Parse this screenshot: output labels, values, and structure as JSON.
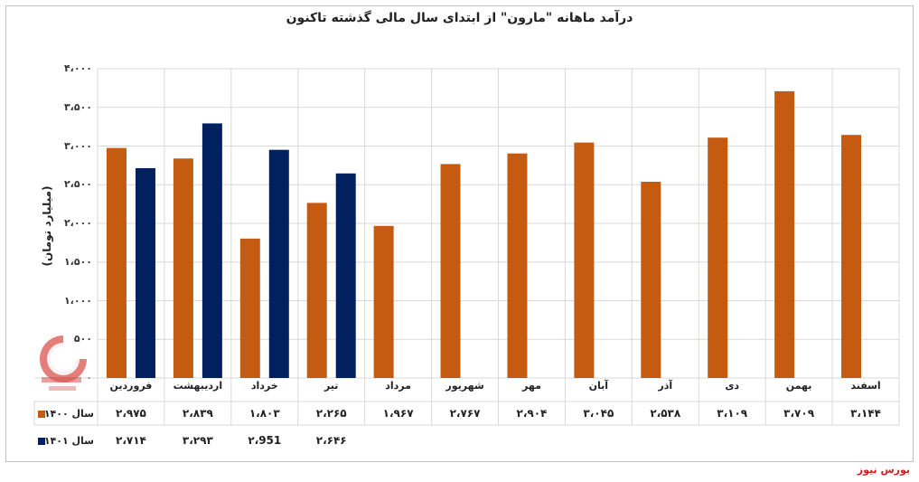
{
  "chart_data": {
    "type": "bar",
    "title": "درآمد ماهانه \"مارون\" از ابتدای سال مالی گذشته تاکنون",
    "ylabel": "(میلیارد تومان)",
    "ylim": [
      0,
      4000
    ],
    "yticks": [
      "۰",
      "۵۰۰",
      "۱،۰۰۰",
      "۱،۵۰۰",
      "۲،۰۰۰",
      "۲،۵۰۰",
      "۳،۰۰۰",
      "۳،۵۰۰",
      "۴،۰۰۰"
    ],
    "categories": [
      "فروردین",
      "اردیبهشت",
      "خرداد",
      "تیر",
      "مرداد",
      "شهریور",
      "مهر",
      "آبان",
      "آذر",
      "دی",
      "بهمن",
      "اسفند"
    ],
    "series": [
      {
        "name": "سال ۱۴۰۰",
        "color": "#C55A11",
        "values": [
          2975,
          2839,
          1803,
          2265,
          1967,
          2767,
          2904,
          3045,
          2538,
          3109,
          3709,
          3144
        ],
        "labels": [
          "۲،۹۷۵",
          "۲،۸۳۹",
          "۱،۸۰۳",
          "۲،۲۶۵",
          "۱،۹۶۷",
          "۲،۷۶۷",
          "۲،۹۰۴",
          "۳،۰۴۵",
          "۲،۵۳۸",
          "۳،۱۰۹",
          "۳،۷۰۹",
          "۳،۱۴۴"
        ]
      },
      {
        "name": "سال ۱۴۰۱",
        "color": "#002060",
        "values": [
          2714,
          3293,
          2951,
          2646,
          null,
          null,
          null,
          null,
          null,
          null,
          null,
          null
        ],
        "labels": [
          "۲،۷۱۴",
          "۳،۲۹۳",
          "۲،951",
          "۲،۶۴۶",
          "",
          "",
          "",
          "",
          "",
          "",
          "",
          ""
        ]
      }
    ],
    "grid": true,
    "legend": "data-table-left"
  },
  "source": "بورس نیوز"
}
